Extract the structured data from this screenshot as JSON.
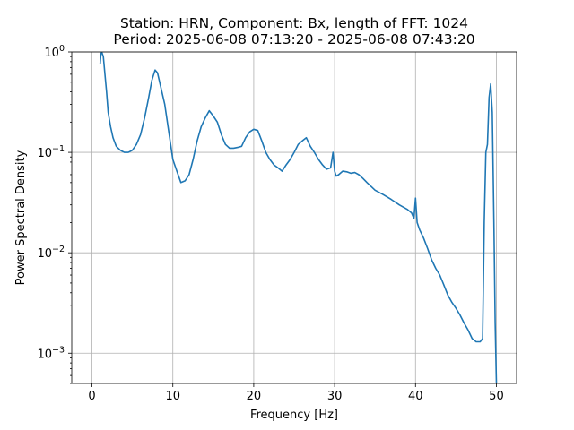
{
  "chart_data": {
    "type": "line",
    "title_line1": "Station: HRN, Component: Bx, length of FFT: 1024",
    "title_line2": "Period: 2025-06-08 07:13:20 - 2025-06-08 07:43:20",
    "xlabel": "Frequency [Hz]",
    "ylabel": "Power Spectral Density",
    "yscale": "log",
    "xlim": [
      -2.5,
      52.5
    ],
    "ylim": [
      0.0005,
      1
    ],
    "grid": true,
    "x_ticks": [
      0,
      10,
      20,
      30,
      40,
      50
    ],
    "x_tick_labels": [
      "0",
      "10",
      "20",
      "30",
      "40",
      "50"
    ],
    "y_ticks": [
      0.001,
      0.01,
      0.1,
      1
    ],
    "y_tick_base": "10",
    "y_tick_exponents": [
      "−3",
      "−2",
      "−1",
      "0"
    ],
    "color": "#1f77b4",
    "series": [
      {
        "x": [
          1.0,
          1.1,
          1.2,
          1.4,
          1.6,
          1.8,
          2.0,
          2.3,
          2.6,
          3.0,
          3.5,
          4.0,
          4.5,
          5.0,
          5.5,
          6.0,
          6.5,
          7.0,
          7.4,
          7.8,
          8.1,
          8.5,
          9.0,
          9.5,
          10.0,
          10.5,
          11.0,
          11.5,
          12.0,
          12.5,
          13.0,
          13.5,
          14.0,
          14.5,
          15.0,
          15.5,
          16.0,
          16.5,
          17.0,
          17.5,
          18.0,
          18.5,
          19.0,
          19.5,
          20.0,
          20.5,
          21.0,
          21.5,
          22.0,
          22.5,
          23.0,
          23.5,
          24.0,
          24.5,
          25.0,
          25.5,
          26.0,
          26.5,
          27.0,
          27.5,
          28.0,
          28.5,
          29.0,
          29.5,
          29.8,
          30.0,
          30.2,
          30.5,
          31.0,
          31.5,
          32.0,
          32.5,
          33.0,
          33.5,
          34.0,
          35.0,
          36.0,
          37.0,
          38.0,
          39.0,
          39.5,
          39.8,
          40.0,
          40.2,
          40.5,
          41.0,
          41.5,
          42.0,
          42.5,
          43.0,
          43.5,
          44.0,
          44.5,
          45.0,
          45.5,
          46.0,
          46.5,
          47.0,
          47.5,
          48.0,
          48.3,
          48.5,
          48.7,
          48.9,
          49.1,
          49.3,
          49.5,
          49.7,
          49.85,
          50.0
        ],
        "y": [
          0.75,
          0.95,
          1.0,
          0.9,
          0.6,
          0.4,
          0.25,
          0.18,
          0.14,
          0.115,
          0.105,
          0.1,
          0.1,
          0.105,
          0.12,
          0.15,
          0.22,
          0.35,
          0.52,
          0.66,
          0.62,
          0.45,
          0.3,
          0.16,
          0.085,
          0.065,
          0.05,
          0.052,
          0.06,
          0.085,
          0.13,
          0.18,
          0.22,
          0.26,
          0.23,
          0.2,
          0.15,
          0.12,
          0.11,
          0.11,
          0.112,
          0.115,
          0.14,
          0.16,
          0.17,
          0.165,
          0.13,
          0.1,
          0.085,
          0.075,
          0.07,
          0.065,
          0.075,
          0.085,
          0.1,
          0.12,
          0.13,
          0.14,
          0.115,
          0.1,
          0.085,
          0.075,
          0.068,
          0.07,
          0.1,
          0.065,
          0.058,
          0.06,
          0.065,
          0.064,
          0.062,
          0.063,
          0.06,
          0.055,
          0.05,
          0.042,
          0.038,
          0.034,
          0.03,
          0.027,
          0.025,
          0.022,
          0.035,
          0.02,
          0.017,
          0.014,
          0.011,
          0.0085,
          0.007,
          0.006,
          0.0048,
          0.0038,
          0.0032,
          0.0028,
          0.0024,
          0.002,
          0.0017,
          0.0014,
          0.0013,
          0.0013,
          0.0014,
          0.02,
          0.1,
          0.12,
          0.35,
          0.48,
          0.25,
          0.02,
          0.002,
          0.0005
        ]
      }
    ]
  }
}
